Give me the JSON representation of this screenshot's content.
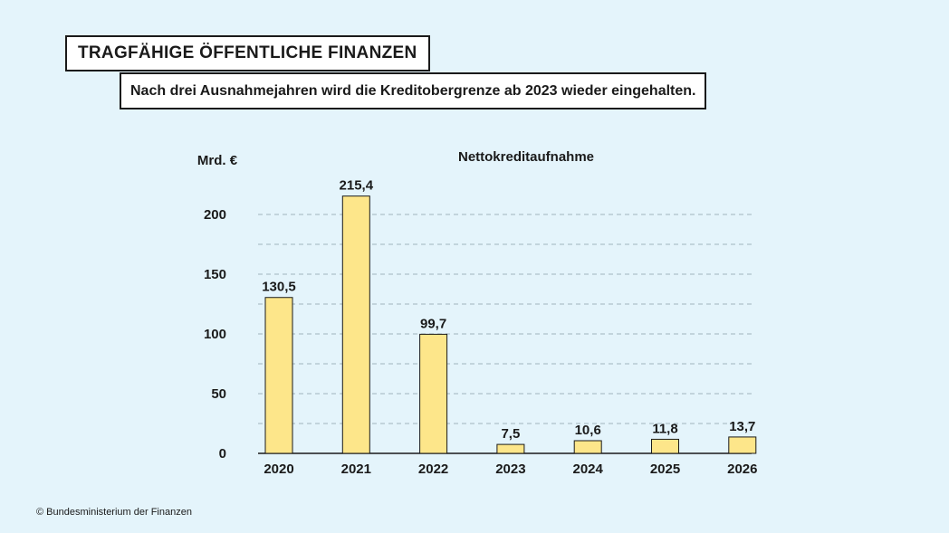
{
  "header": {
    "title": "TRAGFÄHIGE ÖFFENTLICHE FINANZEN",
    "subtitle": "Nach drei Ausnahmejahren wird die Kreditobergrenze ab 2023 wieder eingehalten."
  },
  "footer": {
    "source": "© Bundesministerium der Finanzen"
  },
  "colors": {
    "background": "#e4f4fb",
    "bar_fill": "#fde68a",
    "bar_stroke": "#1a1a1a",
    "grid": "#9fb3bd"
  },
  "chart_data": {
    "type": "bar",
    "title": "Nettokreditaufnahme",
    "ylabel": "Mrd. €",
    "xlabel": "",
    "categories": [
      "2020",
      "2021",
      "2022",
      "2023",
      "2024",
      "2025",
      "2026"
    ],
    "values": [
      130.5,
      215.4,
      99.7,
      7.5,
      10.6,
      11.8,
      13.7
    ],
    "value_labels": [
      "130,5",
      "215,4",
      "99,7",
      "7,5",
      "10,6",
      "11,8",
      "13,7"
    ],
    "ylim": [
      0,
      200
    ],
    "yticks": [
      0,
      50,
      100,
      150,
      200
    ],
    "gridlines": [
      25,
      50,
      75,
      100,
      125,
      150,
      175,
      200
    ],
    "grid": true,
    "legend": "none"
  }
}
